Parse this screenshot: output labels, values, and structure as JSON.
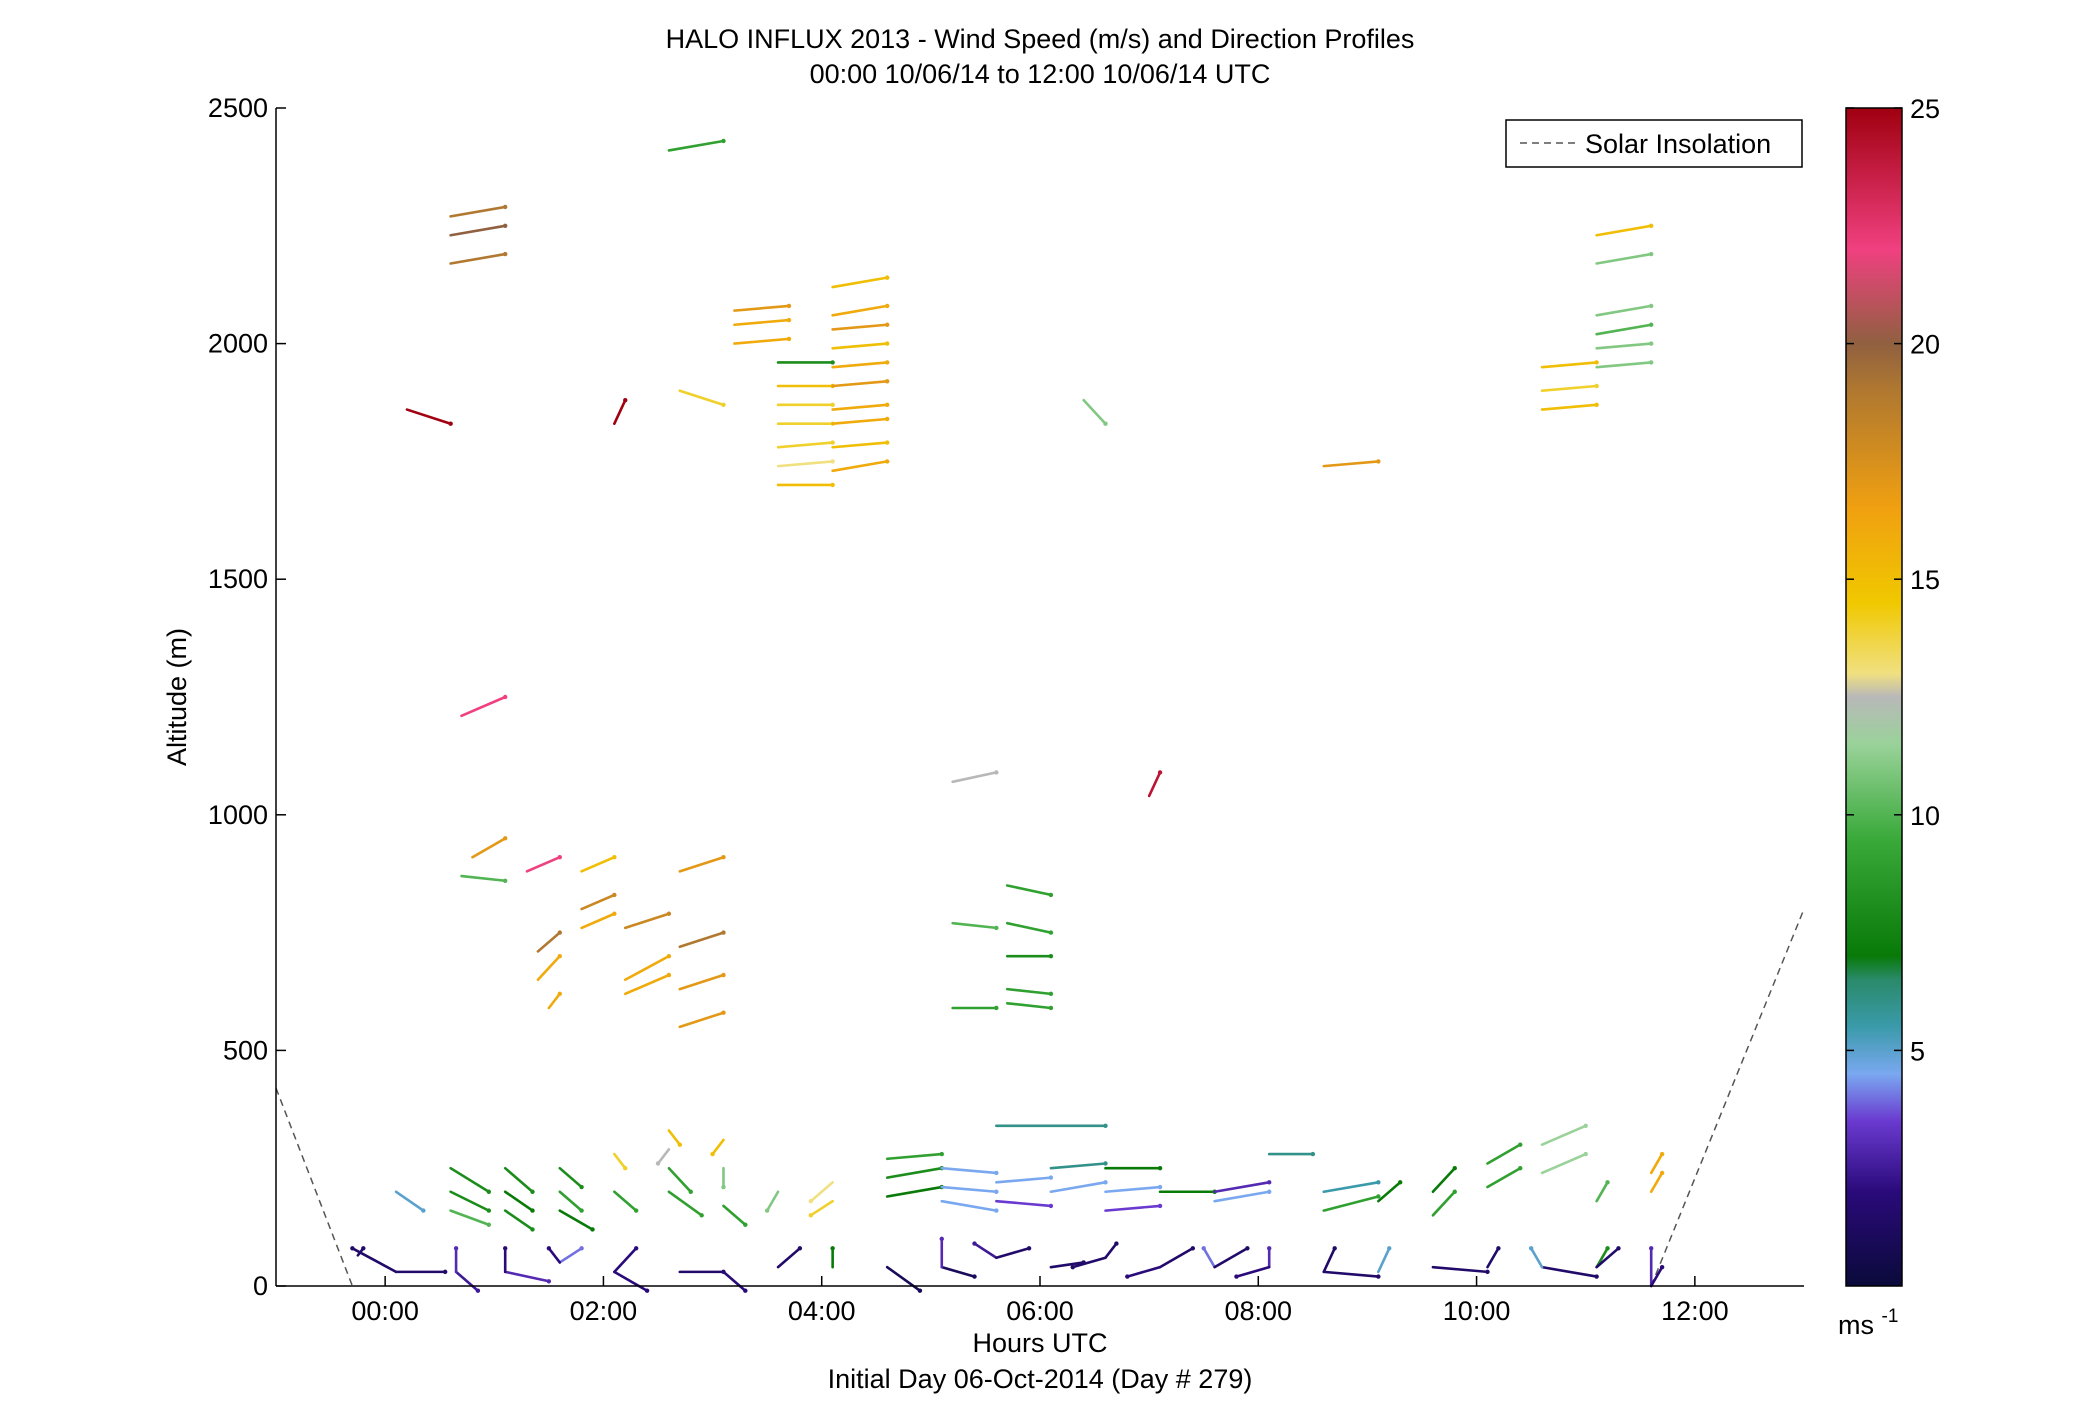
{
  "chart_data": {
    "type": "scatter",
    "title": "HALO INFLUX 2013 - Wind Speed (m/s) and Direction Profiles",
    "subtitle": "00:00 10/06/14 to 12:00 10/06/14  UTC",
    "xlabel": "Hours UTC",
    "xlabel2": "Initial Day 06-Oct-2014 (Day # 279)",
    "ylabel": "Altitude (m)",
    "xlim": [
      -1,
      13
    ],
    "ylim": [
      0,
      2500
    ],
    "xticks": [
      0,
      2,
      4,
      6,
      8,
      10,
      12
    ],
    "xtick_labels": [
      "00:00",
      "02:00",
      "04:00",
      "06:00",
      "08:00",
      "10:00",
      "12:00"
    ],
    "yticks": [
      0,
      500,
      1000,
      1500,
      2000,
      2500
    ],
    "ytick_labels": [
      "0",
      "500",
      "1000",
      "1500",
      "2000",
      "2500"
    ],
    "legend": {
      "label": "Solar Insolation",
      "position": "top-right"
    },
    "colorbar": {
      "min": 0,
      "max": 25,
      "ticks": [
        5,
        10,
        15,
        20,
        25
      ],
      "tick_labels": [
        "5",
        "10",
        "15",
        "20",
        "25"
      ],
      "unit": "ms",
      "unit_exp": "-1",
      "stops": [
        [
          0,
          "#0a0a3a"
        ],
        [
          2,
          "#2a0a7a"
        ],
        [
          3.5,
          "#6a3ad0"
        ],
        [
          4.5,
          "#7aa8f0"
        ],
        [
          5.5,
          "#3a9aaa"
        ],
        [
          6.5,
          "#2a8a6a"
        ],
        [
          7,
          "#087a08"
        ],
        [
          9.5,
          "#3aaa3a"
        ],
        [
          11.5,
          "#9ad29a"
        ],
        [
          12.5,
          "#b8b8b8"
        ],
        [
          13,
          "#f0e080"
        ],
        [
          14.5,
          "#f0c800"
        ],
        [
          16.5,
          "#f0a010"
        ],
        [
          19,
          "#b07830"
        ],
        [
          20,
          "#906040"
        ],
        [
          22,
          "#f04080"
        ],
        [
          25,
          "#a00010"
        ]
      ]
    },
    "solar_insolation": [
      {
        "x": -1,
        "y": 420
      },
      {
        "x": -0.3,
        "y": 0
      },
      {
        "x": 11.6,
        "y": 0
      },
      {
        "x": 13,
        "y": 800
      }
    ],
    "series": [
      {
        "barbs": [
          [
            -0.25,
            65,
            -0.2,
            80,
            1.5
          ],
          [
            0.1,
            30,
            0.55,
            30,
            1.5
          ],
          [
            0.1,
            30,
            -0.3,
            80,
            1.5
          ],
          [
            0.65,
            30,
            0.85,
            -10,
            2.5
          ],
          [
            0.65,
            30,
            0.65,
            80,
            3
          ],
          [
            1.1,
            30,
            1.5,
            10,
            3
          ],
          [
            1.1,
            30,
            1.1,
            80,
            2
          ],
          [
            1.6,
            50,
            1.8,
            80,
            4
          ],
          [
            1.6,
            50,
            1.5,
            80,
            2
          ],
          [
            2.1,
            30,
            2.4,
            -10,
            2
          ],
          [
            2.1,
            30,
            2.3,
            80,
            2
          ],
          [
            2.7,
            30,
            3.1,
            30,
            1.5
          ],
          [
            3.1,
            30,
            3.3,
            -10,
            2
          ],
          [
            3.6,
            40,
            3.8,
            80,
            1.5
          ],
          [
            4.1,
            40,
            4.1,
            80,
            7
          ],
          [
            4.6,
            40,
            4.9,
            -10,
            1
          ],
          [
            5.1,
            40,
            5.4,
            20,
            1
          ],
          [
            5.1,
            40,
            5.1,
            100,
            3
          ],
          [
            5.6,
            60,
            5.4,
            90,
            2.5
          ],
          [
            5.6,
            60,
            5.9,
            80,
            1.5
          ],
          [
            6.1,
            40,
            6.4,
            50,
            1.5
          ],
          [
            6.6,
            60,
            6.7,
            90,
            1.5
          ],
          [
            6.6,
            60,
            6.3,
            40,
            1.5
          ],
          [
            7.1,
            40,
            7.4,
            80,
            1.5
          ],
          [
            7.1,
            40,
            6.8,
            20,
            2
          ],
          [
            7.6,
            40,
            7.5,
            80,
            4
          ],
          [
            7.6,
            40,
            7.9,
            80,
            1.5
          ],
          [
            8.1,
            40,
            8.1,
            80,
            3
          ],
          [
            8.1,
            40,
            7.8,
            20,
            2
          ],
          [
            8.6,
            30,
            9.1,
            20,
            1.5
          ],
          [
            8.6,
            30,
            8.7,
            80,
            1.5
          ],
          [
            9.1,
            30,
            9.2,
            80,
            5
          ],
          [
            9.6,
            40,
            10.1,
            30,
            1.5
          ],
          [
            10.1,
            40,
            10.2,
            80,
            1.5
          ],
          [
            10.6,
            40,
            11.1,
            20,
            1.5
          ],
          [
            10.6,
            40,
            10.5,
            80,
            5
          ],
          [
            11.1,
            40,
            11.2,
            80,
            8
          ],
          [
            11.1,
            40,
            11.3,
            80,
            1.5
          ],
          [
            11.6,
            0,
            11.6,
            80,
            3
          ],
          [
            11.6,
            0,
            11.7,
            40,
            2
          ]
        ]
      },
      {
        "barbs": [
          [
            0.1,
            200,
            0.35,
            160,
            5
          ],
          [
            0.6,
            250,
            0.95,
            200,
            8
          ],
          [
            0.6,
            200,
            0.95,
            160,
            8
          ],
          [
            0.6,
            160,
            0.95,
            130,
            10
          ],
          [
            1.1,
            250,
            1.35,
            200,
            8
          ],
          [
            1.1,
            200,
            1.35,
            160,
            7
          ],
          [
            1.1,
            160,
            1.35,
            120,
            8
          ],
          [
            1.6,
            250,
            1.8,
            210,
            8
          ],
          [
            1.6,
            200,
            1.8,
            160,
            9
          ],
          [
            1.6,
            160,
            1.9,
            120,
            7
          ],
          [
            2.1,
            280,
            2.2,
            250,
            14
          ],
          [
            2.1,
            200,
            2.3,
            160,
            9
          ],
          [
            2.6,
            330,
            2.7,
            300,
            15
          ],
          [
            2.6,
            290,
            2.5,
            260,
            12.5
          ],
          [
            2.6,
            250,
            2.8,
            200,
            9
          ],
          [
            2.6,
            200,
            2.9,
            150,
            9
          ],
          [
            3.1,
            310,
            3,
            280,
            15
          ],
          [
            3.1,
            250,
            3.1,
            210,
            11
          ],
          [
            3.1,
            170,
            3.3,
            130,
            9
          ],
          [
            3.6,
            200,
            3.5,
            160,
            11
          ],
          [
            4.1,
            220,
            3.9,
            180,
            13
          ],
          [
            4.1,
            180,
            3.9,
            150,
            14
          ],
          [
            4.6,
            270,
            5.1,
            280,
            9
          ],
          [
            4.6,
            230,
            5.1,
            250,
            8
          ],
          [
            4.6,
            190,
            5.1,
            210,
            7
          ],
          [
            5.1,
            250,
            5.6,
            240,
            4.5
          ],
          [
            5.1,
            210,
            5.6,
            200,
            4.5
          ],
          [
            5.1,
            180,
            5.6,
            160,
            4.5
          ],
          [
            5.6,
            220,
            6.1,
            230,
            4.5
          ],
          [
            5.6,
            180,
            6.1,
            170,
            3.5
          ],
          [
            5.6,
            340,
            6.6,
            340,
            6
          ],
          [
            6.1,
            250,
            6.6,
            260,
            6
          ],
          [
            6.1,
            200,
            6.6,
            220,
            4.5
          ],
          [
            6.6,
            250,
            7.1,
            250,
            7
          ],
          [
            6.6,
            200,
            7.1,
            210,
            4.5
          ],
          [
            6.6,
            160,
            7.1,
            170,
            3.5
          ],
          [
            7.1,
            200,
            7.6,
            200,
            7
          ],
          [
            7.6,
            200,
            8.1,
            220,
            3
          ],
          [
            7.6,
            180,
            8.1,
            200,
            4.5
          ],
          [
            8.1,
            280,
            8.5,
            280,
            6
          ],
          [
            8.6,
            200,
            9.1,
            220,
            5.5
          ],
          [
            8.6,
            160,
            9.1,
            190,
            9
          ],
          [
            9.1,
            180,
            9.3,
            220,
            7
          ],
          [
            9.6,
            200,
            9.8,
            250,
            7
          ],
          [
            9.6,
            150,
            9.8,
            200,
            9
          ],
          [
            10.1,
            260,
            10.4,
            300,
            9
          ],
          [
            10.1,
            210,
            10.4,
            250,
            9
          ],
          [
            10.6,
            300,
            11,
            340,
            11.5
          ],
          [
            10.6,
            240,
            11,
            280,
            11.5
          ],
          [
            11.1,
            180,
            11.2,
            220,
            10
          ],
          [
            11.6,
            240,
            11.7,
            280,
            16
          ],
          [
            11.6,
            200,
            11.7,
            240,
            16
          ]
        ]
      },
      {
        "barbs": [
          [
            0.7,
            870,
            1.1,
            860,
            10
          ],
          [
            0.8,
            910,
            1.1,
            950,
            17
          ],
          [
            1.3,
            880,
            1.6,
            910,
            22
          ],
          [
            1.4,
            710,
            1.6,
            750,
            19
          ],
          [
            1.4,
            650,
            1.6,
            700,
            16
          ],
          [
            1.5,
            590,
            1.6,
            620,
            16
          ],
          [
            1.8,
            880,
            2.1,
            910,
            15
          ],
          [
            1.8,
            800,
            2.1,
            830,
            18
          ],
          [
            1.8,
            760,
            2.1,
            790,
            16
          ],
          [
            2.2,
            760,
            2.6,
            790,
            18
          ],
          [
            2.2,
            650,
            2.6,
            700,
            16
          ],
          [
            2.2,
            620,
            2.6,
            660,
            16
          ],
          [
            2.7,
            880,
            3.1,
            910,
            17
          ],
          [
            2.7,
            720,
            3.1,
            750,
            19
          ],
          [
            2.7,
            630,
            3.1,
            660,
            17
          ],
          [
            2.7,
            550,
            3.1,
            580,
            17
          ],
          [
            5.2,
            770,
            5.6,
            760,
            10
          ],
          [
            5.2,
            590,
            5.6,
            590,
            9
          ],
          [
            5.7,
            850,
            6.1,
            830,
            9
          ],
          [
            5.7,
            770,
            6.1,
            750,
            9
          ],
          [
            5.7,
            700,
            6.1,
            700,
            8
          ],
          [
            5.7,
            630,
            6.1,
            620,
            9
          ],
          [
            5.7,
            600,
            6.1,
            590,
            9
          ],
          [
            5.2,
            1070,
            5.6,
            1090,
            12.5
          ],
          [
            7,
            1040,
            7.1,
            1090,
            24
          ],
          [
            0.7,
            1210,
            1.1,
            1250,
            22
          ],
          [
            0.2,
            1860,
            0.6,
            1830,
            25
          ],
          [
            2.1,
            1830,
            2.2,
            1880,
            25
          ]
        ]
      },
      {
        "barbs": [
          [
            0.6,
            2270,
            1.1,
            2290,
            19
          ],
          [
            0.6,
            2230,
            1.1,
            2250,
            20
          ],
          [
            0.6,
            2170,
            1.1,
            2190,
            19
          ],
          [
            2.6,
            2410,
            3.1,
            2430,
            9
          ],
          [
            3.2,
            2070,
            3.7,
            2080,
            17
          ],
          [
            3.2,
            2040,
            3.7,
            2050,
            16
          ],
          [
            3.2,
            2000,
            3.7,
            2010,
            16
          ],
          [
            2.7,
            1900,
            3.1,
            1870,
            14
          ],
          [
            3.6,
            1960,
            4.1,
            1960,
            8
          ],
          [
            3.6,
            1910,
            4.1,
            1910,
            15
          ],
          [
            3.6,
            1870,
            4.1,
            1870,
            14
          ],
          [
            3.6,
            1830,
            4.1,
            1830,
            14
          ],
          [
            3.6,
            1780,
            4.1,
            1790,
            14
          ],
          [
            3.6,
            1740,
            4.1,
            1750,
            13
          ],
          [
            3.6,
            1700,
            4.1,
            1700,
            15
          ],
          [
            4.1,
            2120,
            4.6,
            2140,
            15
          ],
          [
            4.1,
            2060,
            4.6,
            2080,
            16
          ],
          [
            4.1,
            2030,
            4.6,
            2040,
            17
          ],
          [
            4.1,
            1990,
            4.6,
            2000,
            15
          ],
          [
            4.1,
            1950,
            4.6,
            1960,
            16
          ],
          [
            4.1,
            1910,
            4.6,
            1920,
            17
          ],
          [
            4.1,
            1860,
            4.6,
            1870,
            16
          ],
          [
            4.1,
            1830,
            4.6,
            1840,
            16
          ],
          [
            4.1,
            1780,
            4.6,
            1790,
            15
          ],
          [
            4.1,
            1730,
            4.6,
            1750,
            16
          ],
          [
            6.4,
            1880,
            6.6,
            1830,
            11
          ],
          [
            8.6,
            1740,
            9.1,
            1750,
            17
          ],
          [
            10.6,
            1950,
            11.1,
            1960,
            15
          ],
          [
            10.6,
            1900,
            11.1,
            1910,
            14
          ],
          [
            10.6,
            1860,
            11.1,
            1870,
            15
          ],
          [
            11.1,
            2230,
            11.6,
            2250,
            15
          ],
          [
            11.1,
            2170,
            11.6,
            2190,
            11
          ],
          [
            11.1,
            2060,
            11.6,
            2080,
            11
          ],
          [
            11.1,
            2020,
            11.6,
            2040,
            10
          ],
          [
            11.1,
            1990,
            11.6,
            2000,
            11
          ],
          [
            11.1,
            1950,
            11.6,
            1960,
            11
          ]
        ]
      }
    ]
  }
}
